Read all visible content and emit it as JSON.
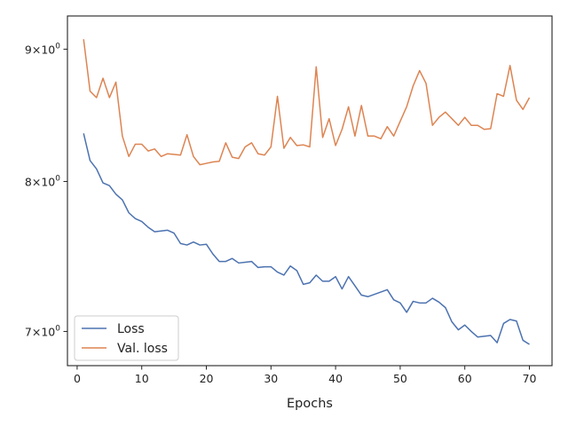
{
  "chart_data": {
    "type": "line",
    "title": "",
    "xlabel": "Epochs",
    "ylabel": "",
    "yscale": "log",
    "xlim": [
      -1.5,
      73.5
    ],
    "ylim": [
      6.79,
      9.27
    ],
    "x_ticks": [
      0,
      10,
      20,
      30,
      40,
      50,
      60,
      70
    ],
    "y_ticks": [
      {
        "value": 7,
        "base": "7",
        "mult": "×",
        "exp_base": "10",
        "exp": "0"
      },
      {
        "value": 8,
        "base": "8",
        "mult": "×",
        "exp_base": "10",
        "exp": "0"
      },
      {
        "value": 9,
        "base": "9",
        "mult": "×",
        "exp_base": "10",
        "exp": "0"
      }
    ],
    "grid": false,
    "legend_position": "lower-left",
    "x": [
      1,
      2,
      3,
      4,
      5,
      6,
      7,
      8,
      9,
      10,
      11,
      12,
      13,
      14,
      15,
      16,
      17,
      18,
      19,
      20,
      21,
      22,
      23,
      24,
      25,
      26,
      27,
      28,
      29,
      30,
      31,
      32,
      33,
      34,
      35,
      36,
      37,
      38,
      39,
      40,
      41,
      42,
      43,
      44,
      45,
      46,
      47,
      48,
      49,
      50,
      51,
      52,
      53,
      54,
      55,
      56,
      57,
      58,
      59,
      60,
      61,
      62,
      63,
      64,
      65,
      66,
      67,
      68,
      69,
      70
    ],
    "series": [
      {
        "name": "Loss",
        "color": "#4c72b0",
        "values": [
          8.35,
          8.15,
          8.09,
          7.99,
          7.97,
          7.91,
          7.87,
          7.78,
          7.74,
          7.72,
          7.68,
          7.65,
          7.655,
          7.66,
          7.64,
          7.57,
          7.56,
          7.58,
          7.56,
          7.565,
          7.5,
          7.45,
          7.45,
          7.47,
          7.44,
          7.445,
          7.45,
          7.41,
          7.415,
          7.415,
          7.38,
          7.36,
          7.42,
          7.39,
          7.3,
          7.31,
          7.36,
          7.32,
          7.32,
          7.35,
          7.27,
          7.35,
          7.29,
          7.23,
          7.22,
          7.235,
          7.25,
          7.265,
          7.2,
          7.18,
          7.12,
          7.19,
          7.18,
          7.18,
          7.21,
          7.185,
          7.15,
          7.06,
          7.01,
          7.04,
          7.0,
          6.965,
          6.97,
          6.975,
          6.93,
          7.05,
          7.075,
          7.065,
          6.945,
          6.92
        ]
      },
      {
        "name": "Val. loss",
        "color": "#dd8452",
        "values": [
          9.08,
          8.67,
          8.62,
          8.77,
          8.62,
          8.74,
          8.33,
          8.18,
          8.27,
          8.27,
          8.22,
          8.235,
          8.18,
          8.2,
          8.195,
          8.19,
          8.34,
          8.18,
          8.12,
          8.13,
          8.14,
          8.145,
          8.28,
          8.175,
          8.165,
          8.25,
          8.28,
          8.2,
          8.19,
          8.25,
          8.63,
          8.24,
          8.32,
          8.26,
          8.265,
          8.25,
          8.86,
          8.32,
          8.46,
          8.26,
          8.38,
          8.55,
          8.33,
          8.56,
          8.33,
          8.33,
          8.31,
          8.4,
          8.33,
          8.44,
          8.55,
          8.71,
          8.83,
          8.73,
          8.41,
          8.47,
          8.51,
          8.46,
          8.41,
          8.47,
          8.41,
          8.41,
          8.38,
          8.385,
          8.65,
          8.63,
          8.87,
          8.6,
          8.53,
          8.62
        ]
      }
    ]
  }
}
